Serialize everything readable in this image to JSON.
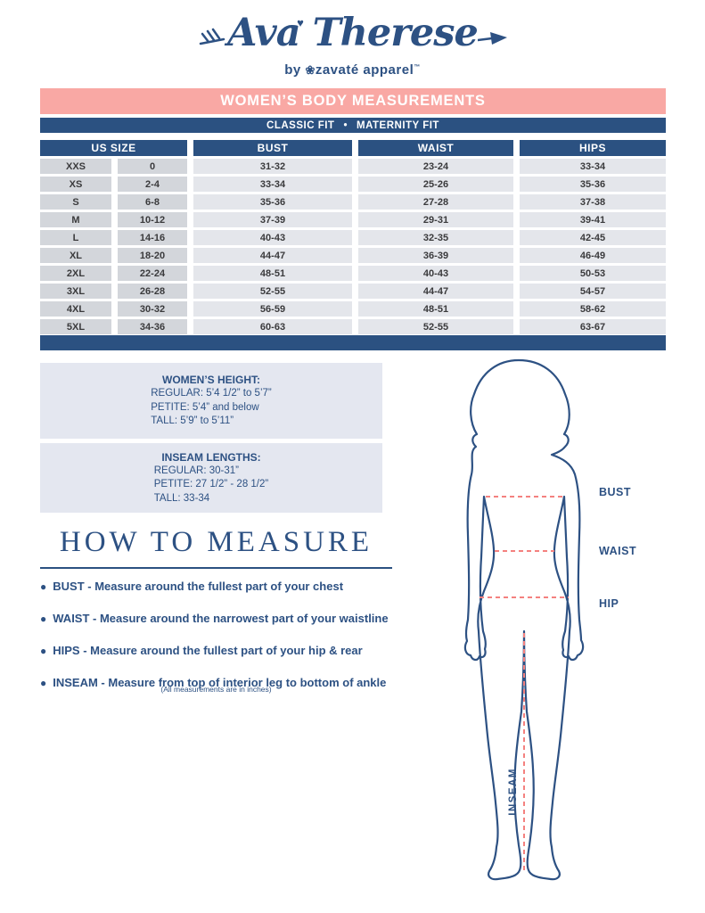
{
  "brand": {
    "name": "Ava Therese",
    "by": "by",
    "company": "zavaté apparel",
    "trademark": "™",
    "emblem_icon": "flower-emblem",
    "heart_icon": "heart"
  },
  "banner": {
    "title": "WOMEN’S BODY MEASUREMENTS"
  },
  "fit_bar": {
    "left": "CLASSIC FIT",
    "separator": "•",
    "right": "MATERNITY FIT"
  },
  "size_table": {
    "headers": {
      "us_size": "US SIZE",
      "bust": "BUST",
      "waist": "WAIST",
      "hips": "HIPS"
    },
    "rows": [
      {
        "size": "XXS",
        "us": "0",
        "bust": "31-32",
        "waist": "23-24",
        "hips": "33-34"
      },
      {
        "size": "XS",
        "us": "2-4",
        "bust": "33-34",
        "waist": "25-26",
        "hips": "35-36"
      },
      {
        "size": "S",
        "us": "6-8",
        "bust": "35-36",
        "waist": "27-28",
        "hips": "37-38"
      },
      {
        "size": "M",
        "us": "10-12",
        "bust": "37-39",
        "waist": "29-31",
        "hips": "39-41"
      },
      {
        "size": "L",
        "us": "14-16",
        "bust": "40-43",
        "waist": "32-35",
        "hips": "42-45"
      },
      {
        "size": "XL",
        "us": "18-20",
        "bust": "44-47",
        "waist": "36-39",
        "hips": "46-49"
      },
      {
        "size": "2XL",
        "us": "22-24",
        "bust": "48-51",
        "waist": "40-43",
        "hips": "50-53"
      },
      {
        "size": "3XL",
        "us": "26-28",
        "bust": "52-55",
        "waist": "44-47",
        "hips": "54-57"
      },
      {
        "size": "4XL",
        "us": "30-32",
        "bust": "56-59",
        "waist": "48-51",
        "hips": "58-62"
      },
      {
        "size": "5XL",
        "us": "34-36",
        "bust": "60-63",
        "waist": "52-55",
        "hips": "63-67"
      }
    ]
  },
  "info_boxes": [
    {
      "title": "WOMEN’S HEIGHT:",
      "lines": [
        "REGULAR: 5’4 1/2” to 5’7”",
        "PETITE: 5’4” and below",
        "TALL: 5’9” to 5’11”"
      ]
    },
    {
      "title": "INSEAM LENGTHS:",
      "lines": [
        "REGULAR: 30-31”",
        "PETITE: 27 1/2” - 28 1/2”",
        "TALL: 33-34"
      ]
    }
  ],
  "how_to_measure": {
    "title": "HOW TO MEASURE",
    "bullets": [
      "BUST - Measure around the fullest part of your chest",
      "WAIST - Measure around the narrowest part of your waistline",
      "HIPS - Measure around the fullest part of your hip & rear",
      "INSEAM - Measure from top of interior leg to bottom of ankle"
    ],
    "note": "(All measurements are in inches)"
  },
  "figure": {
    "labels": {
      "bust": "BUST",
      "waist": "WAIST",
      "hip": "HIP",
      "inseam": "INSEAM"
    }
  },
  "colors": {
    "navy": "#2b5181",
    "navy_text": "#2d5183",
    "pink_banner": "#f9a8a4",
    "dash_pink": "#f4817f",
    "box_bg": "#e4e7f0",
    "cell_dark": "#d3d6db",
    "cell_light": "#e4e6eb",
    "cell_text": "#3a3a3c"
  }
}
